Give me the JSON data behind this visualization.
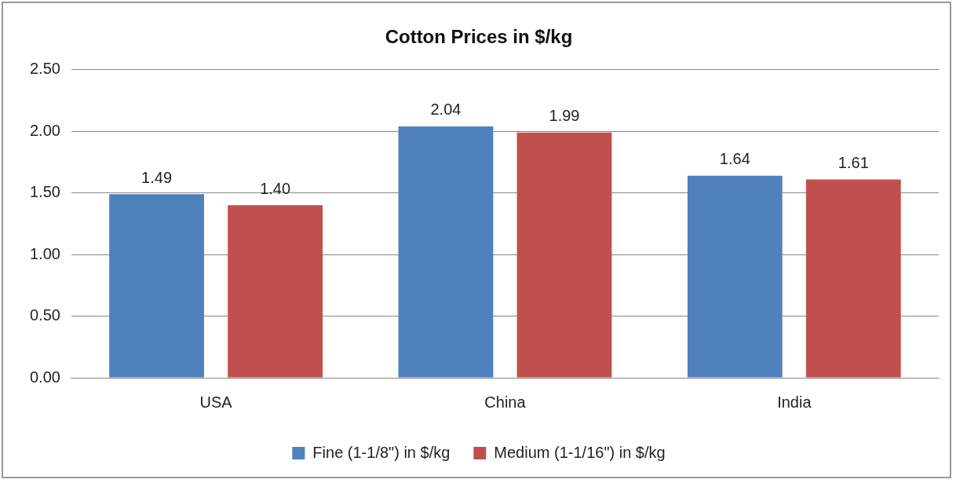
{
  "chart_data": {
    "type": "bar",
    "title": "Cotton Prices in $/kg",
    "categories": [
      "USA",
      "China",
      "India"
    ],
    "series": [
      {
        "name": "Fine (1-1/8\") in $/kg",
        "color": "#4f81bd",
        "values": [
          1.49,
          2.04,
          1.64
        ],
        "value_labels": [
          "1.49",
          "2.04",
          "1.64"
        ]
      },
      {
        "name": "Medium (1-1/16\") in $/kg",
        "color": "#c0504d",
        "values": [
          1.4,
          1.99,
          1.61
        ],
        "value_labels": [
          "1.40",
          "1.99",
          "1.61"
        ]
      }
    ],
    "ylim": [
      0,
      2.5
    ],
    "yticks": [
      {
        "value": 0,
        "label": "0.00"
      },
      {
        "value": 0.5,
        "label": "0.50"
      },
      {
        "value": 1,
        "label": "1.00"
      },
      {
        "value": 1.5,
        "label": "1.50"
      },
      {
        "value": 2,
        "label": "2.00"
      },
      {
        "value": 2.5,
        "label": "2.50"
      }
    ],
    "grid": "y",
    "legend": "bottom"
  }
}
